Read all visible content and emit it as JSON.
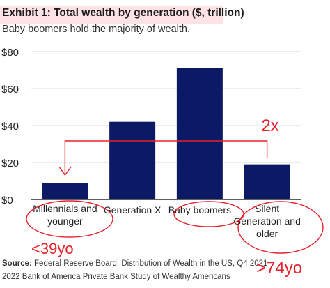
{
  "header": {
    "title_prefix": "Exhibit 1: ",
    "title_main": "Total wealth by generation ($, trillion)",
    "subtitle": "Baby boomers hold the majority of wealth."
  },
  "chart_data": {
    "type": "bar",
    "categories": [
      "Millennials and younger",
      "Generation X",
      "Baby boomers",
      "Silent Generation and older"
    ],
    "category_lines": [
      [
        "Millennials and",
        "younger"
      ],
      [
        "Generation X"
      ],
      [
        "Baby boomers"
      ],
      [
        "Silent",
        "Generation and",
        "older"
      ]
    ],
    "values": [
      9,
      42,
      71,
      19
    ],
    "ylim": [
      0,
      80
    ],
    "yticks": [
      0,
      20,
      40,
      60,
      80
    ],
    "ytick_labels": [
      "$0",
      "$20",
      "$40",
      "$60",
      "$80"
    ],
    "grid": true,
    "colors": {
      "bar": "#0c1a66",
      "grid": "#d9d9d9",
      "axis": "#000000"
    }
  },
  "annotations": {
    "ratio_label": "2x",
    "left_age_label": "<39yo",
    "right_age_label": ">74yo",
    "color": "#e8202a"
  },
  "source": {
    "label": "Source:",
    "line1": "Federal Reserve Board: Distribution of Wealth in the US, Q4 2021",
    "line2": "2022 Bank of America Private Bank Study of Wealthy Americans"
  }
}
